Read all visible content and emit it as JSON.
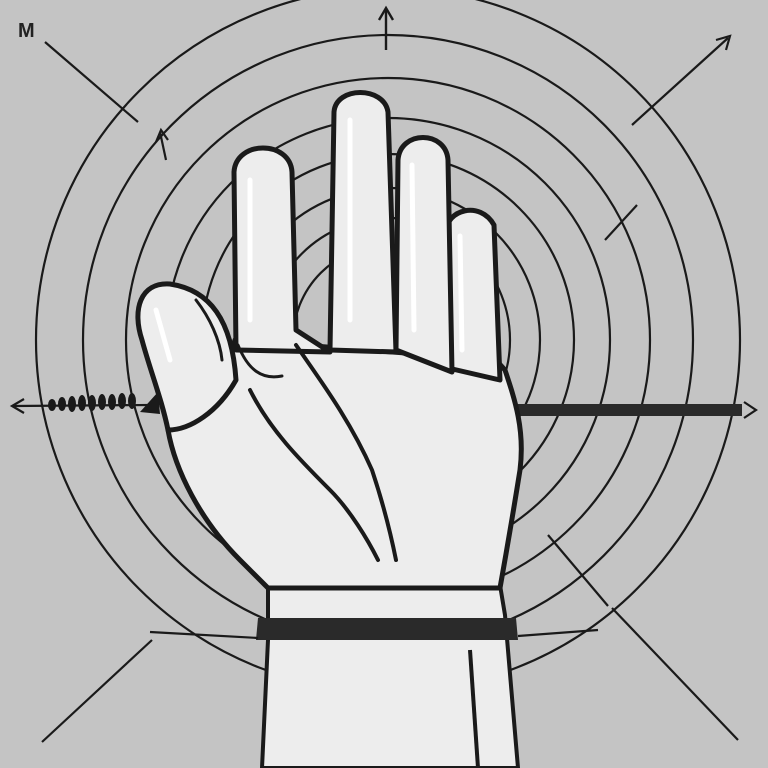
{
  "corner_label": "M",
  "palette": {
    "background": "#c4c4c4",
    "ink": "#1a1a1a",
    "hand_fill": "#ededed",
    "hand_shadow": "#d6d6d6",
    "band": "#2a2a2a"
  },
  "scene": {
    "subject": "raised-open-hand-icon",
    "motif": "concentric-rings-icon",
    "arrows": [
      "arrow-up-icon",
      "arrow-left-icon",
      "arrow-right-icon",
      "diagonal-arrow-icon"
    ]
  }
}
